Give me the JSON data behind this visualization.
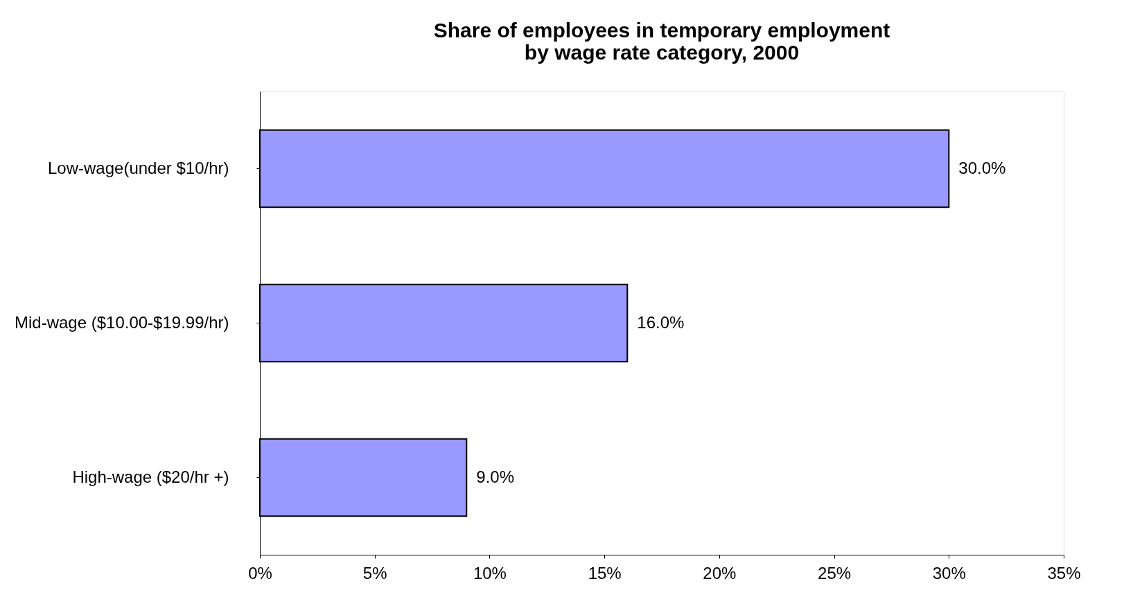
{
  "chart_data": {
    "type": "bar",
    "orientation": "horizontal",
    "title": [
      "Share of employees in temporary employment",
      "by wage rate category, 2000"
    ],
    "categories": [
      "Low-wage(under $10/hr)",
      "Mid-wage ($10.00-$19.99/hr)",
      "High-wage ($20/hr +)"
    ],
    "values": [
      30.0,
      16.0,
      9.0
    ],
    "color": "#9999ff",
    "value_labels": [
      "30.0%",
      "16.0%",
      "9.0%"
    ],
    "xlim": [
      0,
      35
    ],
    "xticks": [
      {
        "value": 0,
        "label": "0%"
      },
      {
        "value": 5,
        "label": "5%"
      },
      {
        "value": 10,
        "label": "10%"
      },
      {
        "value": 15,
        "label": "15%"
      },
      {
        "value": 20,
        "label": "20%"
      },
      {
        "value": 25,
        "label": "25%"
      },
      {
        "value": 30,
        "label": "30%"
      },
      {
        "value": 35,
        "label": "35%"
      }
    ],
    "grid": false
  }
}
